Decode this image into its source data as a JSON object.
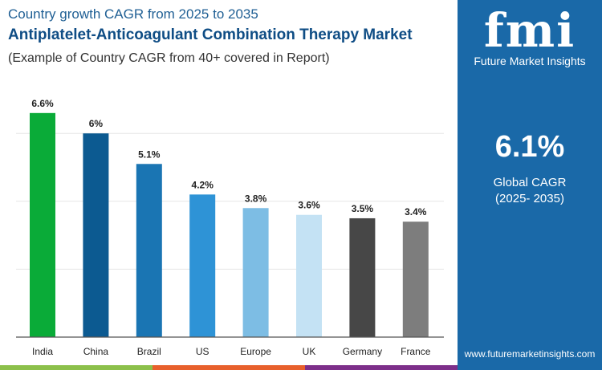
{
  "header": {
    "subtitle": "Country growth CAGR from 2025 to 2035",
    "title": "Antiplatelet-Anticoagulant Combination Therapy Market",
    "note": "(Example of Country CAGR from 40+ covered in Report)"
  },
  "panel": {
    "logo_text": "fmi",
    "logo_sub": "Future Market Insights",
    "value": "6.1%",
    "label1": "Global CAGR",
    "label2": "(2025- 2035)",
    "url": "www.futuremarketinsights.com",
    "bg": "#1a69a8"
  },
  "colors": {
    "stripe": [
      "#8cc04b",
      "#e8602c",
      "#7d2f8a"
    ]
  },
  "chart_data": {
    "type": "bar",
    "categories": [
      "India",
      "China",
      "Brazil",
      "US",
      "Europe",
      "UK",
      "Germany",
      "France"
    ],
    "values": [
      6.6,
      6.0,
      5.1,
      4.2,
      3.8,
      3.6,
      3.5,
      3.4
    ],
    "labels": [
      "6.6%",
      "6%",
      "5.1%",
      "4.2%",
      "3.8%",
      "3.6%",
      "3.5%",
      "3.4%"
    ],
    "colors": [
      "#0aab38",
      "#0c5a91",
      "#1a75b3",
      "#2e93d6",
      "#7dbde4",
      "#c4e2f4",
      "#474747",
      "#7d7d7d"
    ],
    "ylim": [
      0,
      7
    ],
    "grid": true,
    "gridlines": [
      2,
      4,
      6
    ]
  }
}
